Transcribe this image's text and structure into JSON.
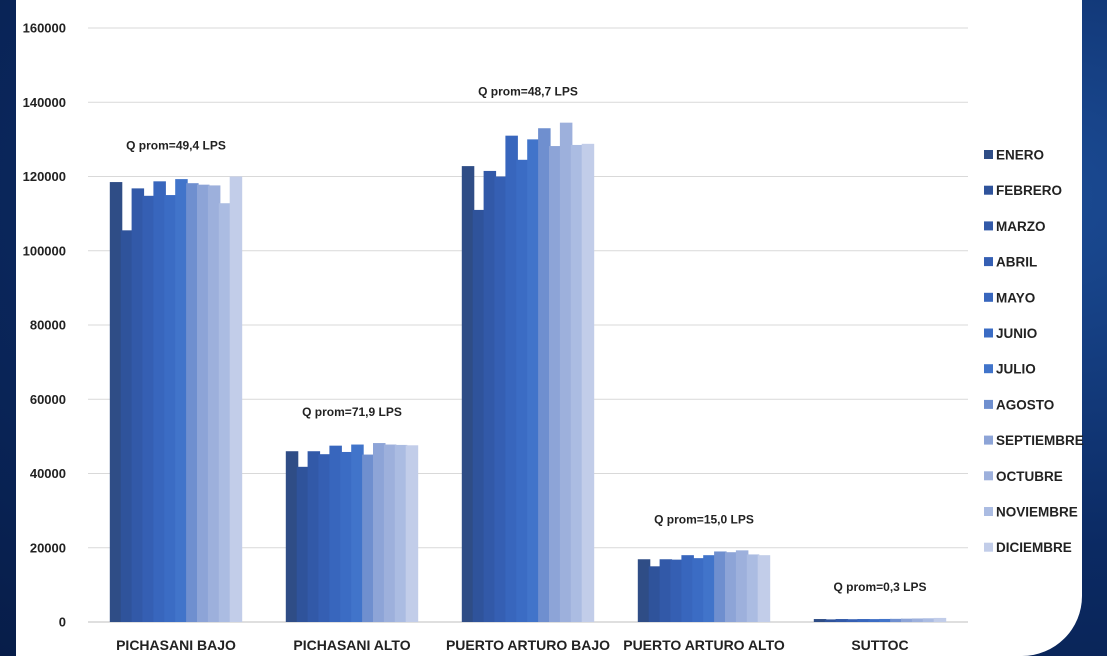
{
  "chart_data": {
    "type": "bar",
    "title": "",
    "xlabel": "",
    "ylabel": "",
    "ylim": [
      0,
      160000
    ],
    "yticks": [
      0,
      20000,
      40000,
      60000,
      80000,
      100000,
      120000,
      140000,
      160000
    ],
    "grid": true,
    "legend_position": "right",
    "categories": [
      "PICHASANI BAJO",
      "PICHASANI ALTO",
      "PUERTO ARTURO BAJO",
      "PUERTO ARTURO ALTO",
      "SUTTOC"
    ],
    "annotations": [
      "Q prom=49,4 LPS",
      "Q prom=71,9 LPS",
      "Q prom=48,7 LPS",
      "Q prom=15,0 LPS",
      "Q prom=0,3 LPS"
    ],
    "series": [
      {
        "name": "ENERO",
        "color": "#2f4d86",
        "values": [
          118500,
          46000,
          122800,
          16900,
          800
        ]
      },
      {
        "name": "FEBRERO",
        "color": "#2f539b",
        "values": [
          105500,
          41800,
          111000,
          15000,
          700
        ]
      },
      {
        "name": "MARZO",
        "color": "#3259a8",
        "values": [
          116800,
          46000,
          121500,
          16900,
          800
        ]
      },
      {
        "name": "ABRIL",
        "color": "#355fb3",
        "values": [
          114800,
          45200,
          120000,
          16800,
          750
        ]
      },
      {
        "name": "MAYO",
        "color": "#3866bd",
        "values": [
          118700,
          47500,
          131000,
          18000,
          800
        ]
      },
      {
        "name": "JUNIO",
        "color": "#3b6cc4",
        "values": [
          115000,
          45800,
          124500,
          17200,
          780
        ]
      },
      {
        "name": "JULIO",
        "color": "#4174ca",
        "values": [
          119300,
          47800,
          130000,
          18000,
          820
        ]
      },
      {
        "name": "AGOSTO",
        "color": "#6f8fcf",
        "values": [
          118200,
          45100,
          133000,
          19000,
          850
        ]
      },
      {
        "name": "SEPTIEMBRE",
        "color": "#8da4d7",
        "values": [
          117800,
          48200,
          128200,
          18800,
          900
        ]
      },
      {
        "name": "OCTUBRE",
        "color": "#9db0dc",
        "values": [
          117600,
          47800,
          134500,
          19300,
          950
        ]
      },
      {
        "name": "NOVIEMBRE",
        "color": "#abbce2",
        "values": [
          112800,
          47700,
          128500,
          18200,
          1000
        ]
      },
      {
        "name": "DICIEMBRE",
        "color": "#c2cde9",
        "values": [
          120000,
          47600,
          128800,
          18000,
          1100
        ]
      }
    ]
  }
}
